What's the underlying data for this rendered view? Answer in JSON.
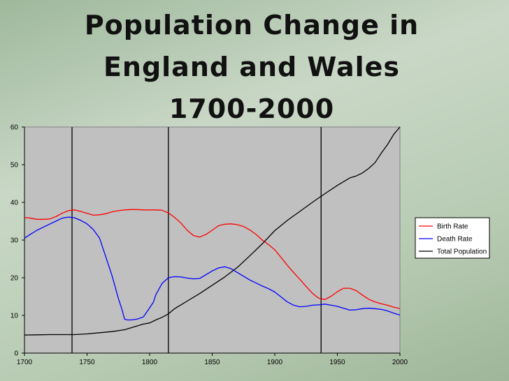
{
  "slide": {
    "title_lines": [
      "Population Change in",
      "England and Wales",
      "1700-2000"
    ]
  },
  "chart_data": {
    "type": "line",
    "xlim": [
      1700,
      2000
    ],
    "ylim": [
      0,
      60
    ],
    "x_ticks": [
      1700,
      1750,
      1800,
      1850,
      1900,
      1950,
      2000
    ],
    "y_ticks": [
      0,
      10,
      20,
      30,
      40,
      50,
      60
    ],
    "grid": false,
    "plot_background": "#c0c0c0",
    "legend_position": "right",
    "vertical_markers": [
      1738,
      1815,
      1937
    ],
    "series": [
      {
        "name": "Birth Rate",
        "color": "#ff0000",
        "x": [
          1700,
          1705,
          1710,
          1715,
          1720,
          1725,
          1730,
          1735,
          1740,
          1745,
          1750,
          1755,
          1760,
          1765,
          1770,
          1775,
          1780,
          1785,
          1790,
          1795,
          1800,
          1805,
          1810,
          1815,
          1820,
          1825,
          1830,
          1835,
          1840,
          1845,
          1850,
          1855,
          1860,
          1865,
          1870,
          1875,
          1880,
          1885,
          1890,
          1895,
          1900,
          1905,
          1910,
          1915,
          1920,
          1925,
          1930,
          1935,
          1940,
          1945,
          1950,
          1955,
          1960,
          1965,
          1970,
          1975,
          1980,
          1985,
          1990,
          1995,
          2000
        ],
        "values": [
          36,
          35.8,
          35.5,
          35.5,
          35.6,
          36.2,
          37.1,
          37.8,
          38,
          37.6,
          37.1,
          36.6,
          36.7,
          37,
          37.5,
          37.8,
          38,
          38.1,
          38.1,
          38,
          38,
          38,
          37.9,
          37.2,
          36,
          34.5,
          32.6,
          31.2,
          30.8,
          31.5,
          32.6,
          33.8,
          34.2,
          34.3,
          34.1,
          33.6,
          32.7,
          31.5,
          30,
          28.8,
          27.4,
          25.4,
          23.3,
          21.4,
          19.6,
          17.7,
          15.9,
          14.6,
          14.2,
          15.1,
          16.3,
          17.2,
          17.2,
          16.6,
          15.4,
          14.3,
          13.6,
          13.1,
          12.7,
          12.2,
          11.8
        ]
      },
      {
        "name": "Death Rate",
        "color": "#0000ff",
        "x": [
          1700,
          1705,
          1710,
          1715,
          1720,
          1725,
          1730,
          1735,
          1740,
          1745,
          1750,
          1755,
          1760,
          1765,
          1770,
          1775,
          1778,
          1780,
          1782,
          1785,
          1790,
          1795,
          1800,
          1803,
          1805,
          1810,
          1815,
          1820,
          1825,
          1830,
          1835,
          1840,
          1845,
          1850,
          1855,
          1860,
          1865,
          1870,
          1875,
          1880,
          1885,
          1890,
          1895,
          1900,
          1905,
          1910,
          1915,
          1920,
          1925,
          1930,
          1935,
          1940,
          1945,
          1950,
          1955,
          1960,
          1965,
          1970,
          1975,
          1980,
          1985,
          1990,
          1995,
          2000
        ],
        "values": [
          30.5,
          31.6,
          32.6,
          33.4,
          34.2,
          35,
          35.8,
          36.1,
          35.9,
          35.2,
          34.3,
          32.8,
          30.5,
          25.5,
          20.5,
          14.5,
          11.5,
          9,
          8.8,
          8.8,
          9,
          9.6,
          12,
          13.5,
          15.5,
          18.5,
          20,
          20.3,
          20.2,
          19.9,
          19.7,
          19.8,
          20.8,
          21.8,
          22.6,
          22.9,
          22.4,
          21.4,
          20.4,
          19.4,
          18.6,
          17.8,
          17.1,
          16.2,
          14.9,
          13.6,
          12.7,
          12.3,
          12.4,
          12.7,
          12.8,
          13,
          12.7,
          12.4,
          11.9,
          11.4,
          11.5,
          11.8,
          11.9,
          11.8,
          11.6,
          11.2,
          10.6,
          10.1
        ]
      },
      {
        "name": "Total Population",
        "color": "#000000",
        "x": [
          1700,
          1710,
          1720,
          1730,
          1740,
          1750,
          1760,
          1770,
          1780,
          1790,
          1795,
          1800,
          1805,
          1810,
          1815,
          1820,
          1825,
          1830,
          1840,
          1850,
          1860,
          1870,
          1880,
          1890,
          1900,
          1910,
          1920,
          1930,
          1940,
          1950,
          1960,
          1965,
          1970,
          1975,
          1980,
          1985,
          1990,
          1995,
          2000
        ],
        "values": [
          4.8,
          4.85,
          4.9,
          4.9,
          4.9,
          5.1,
          5.4,
          5.7,
          6.2,
          7.2,
          7.7,
          8,
          8.8,
          9.5,
          10.4,
          11.8,
          12.8,
          13.8,
          15.8,
          18,
          20.2,
          22.7,
          25.8,
          29,
          32.5,
          35.2,
          37.6,
          40,
          42.3,
          44.5,
          46.5,
          47,
          47.8,
          49,
          50.5,
          53,
          55.3,
          58,
          60
        ]
      }
    ]
  }
}
